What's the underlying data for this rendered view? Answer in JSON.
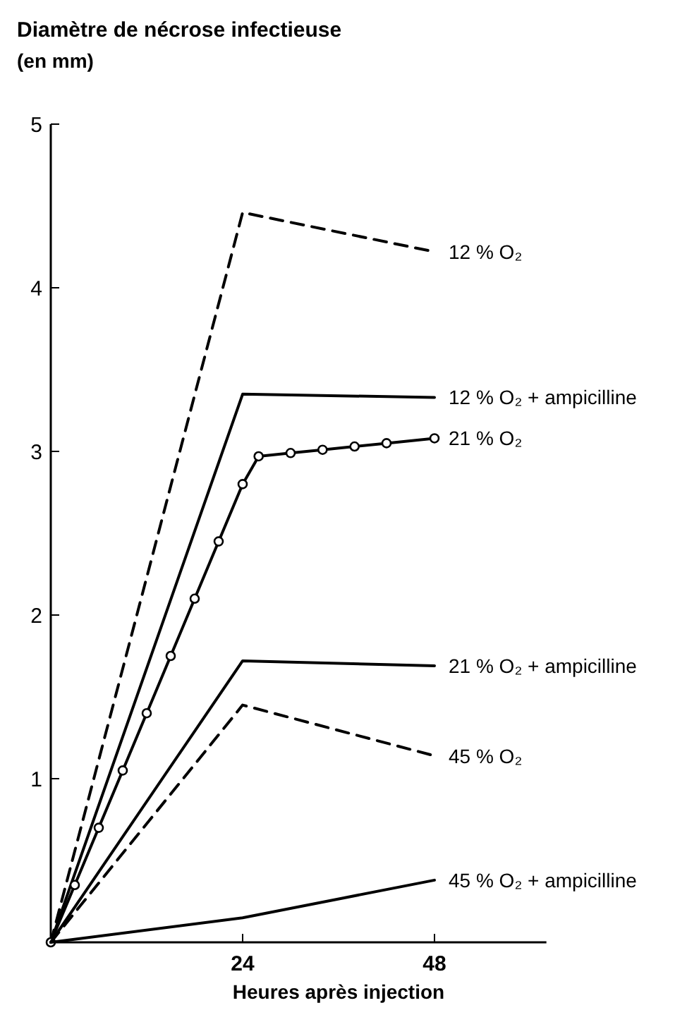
{
  "chart_data": {
    "type": "line",
    "title": "Diamètre de nécrose infectieuse",
    "subtitle": "(en mm)",
    "xlabel": "Heures après injection",
    "xlim": [
      0,
      62
    ],
    "ylim": [
      0,
      5
    ],
    "xticks": [
      24,
      48
    ],
    "yticks": [
      1,
      2,
      3,
      4,
      5
    ],
    "grid": false,
    "series": [
      {
        "name": "12 % O₂",
        "color": "#000000",
        "line_style": "dashed",
        "marker": "none",
        "x": [
          0,
          24,
          48
        ],
        "values": [
          0,
          4.46,
          4.22
        ]
      },
      {
        "name": "12 % O₂ + ampicilline",
        "color": "#000000",
        "line_style": "solid",
        "marker": "none",
        "x": [
          0,
          24,
          48
        ],
        "values": [
          0,
          3.35,
          3.33
        ]
      },
      {
        "name": "21 % O₂",
        "color": "#000000",
        "line_style": "solid",
        "marker": "circle",
        "x": [
          0,
          3,
          6,
          9,
          12,
          15,
          18,
          21,
          24,
          26,
          30,
          34,
          38,
          42,
          48
        ],
        "values": [
          0,
          0.35,
          0.7,
          1.05,
          1.4,
          1.75,
          2.1,
          2.45,
          2.8,
          2.97,
          2.99,
          3.01,
          3.03,
          3.05,
          3.08
        ]
      },
      {
        "name": "21 % O₂ + ampicilline",
        "color": "#000000",
        "line_style": "solid",
        "marker": "none",
        "x": [
          0,
          24,
          48
        ],
        "values": [
          0,
          1.72,
          1.69
        ]
      },
      {
        "name": "45 % O₂",
        "color": "#000000",
        "line_style": "dashed",
        "marker": "none",
        "x": [
          0,
          24,
          48
        ],
        "values": [
          0,
          1.45,
          1.14
        ]
      },
      {
        "name": "45 % O₂ + ampicilline",
        "color": "#000000",
        "line_style": "solid",
        "marker": "none",
        "x": [
          0,
          24,
          48
        ],
        "values": [
          0,
          0.15,
          0.38
        ]
      }
    ]
  }
}
